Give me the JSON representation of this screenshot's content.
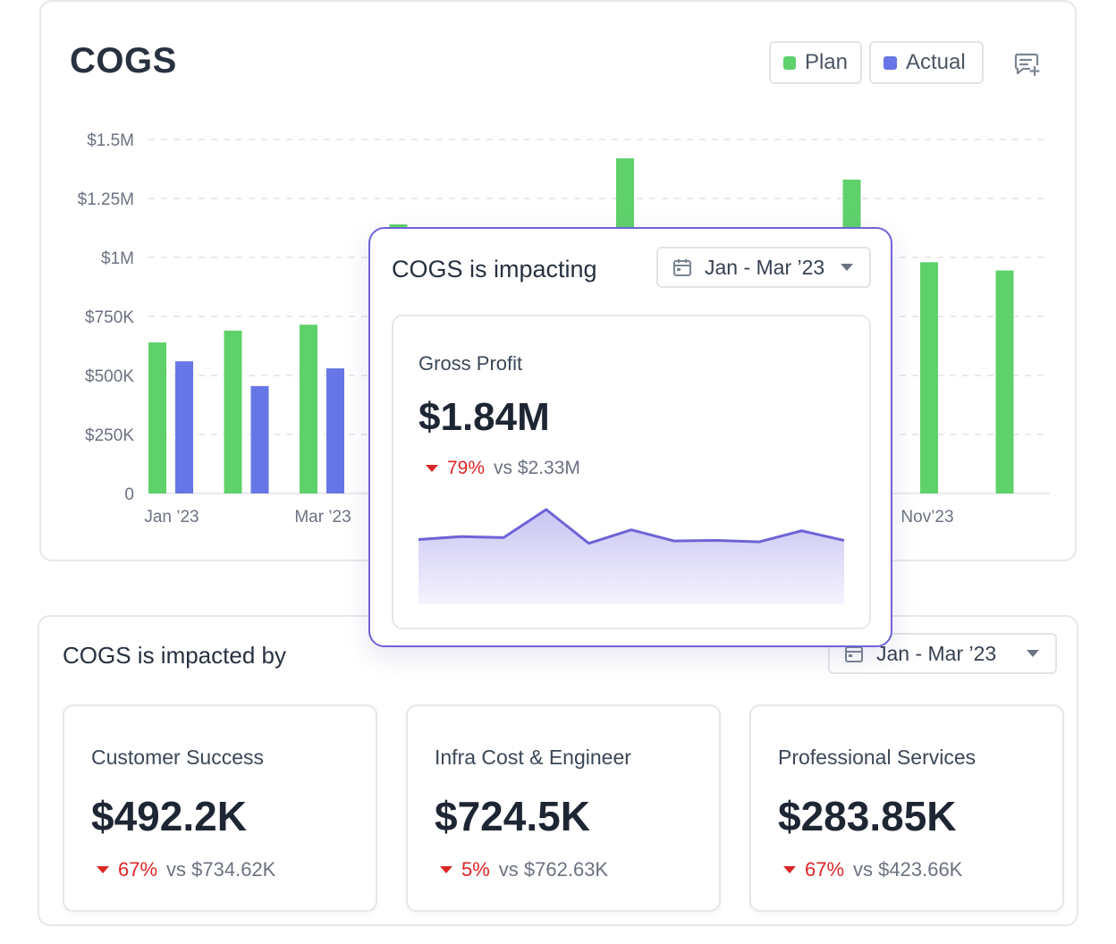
{
  "cogs_card": {
    "title": "COGS",
    "legend": {
      "plan_label": "Plan",
      "actual_label": "Actual"
    },
    "icons": {
      "comment": "comment-add-icon"
    }
  },
  "colors": {
    "plan": "#5fd16b",
    "actual": "#6776e6",
    "accent": "#6e63d6",
    "negative": "#dc2626"
  },
  "chart_data": {
    "type": "bar",
    "title": "COGS",
    "y_ticks": [
      "$1.5M",
      "$1.25M",
      "$1M",
      "$750K",
      "$500K",
      "$250K",
      "0"
    ],
    "ylim": [
      0,
      1500000
    ],
    "x_tick_labels": [
      {
        "index": 0,
        "label": "Jan ’23"
      },
      {
        "index": 2,
        "label": "Mar ’23"
      },
      {
        "index": 10,
        "label": "Nov’23"
      }
    ],
    "series": [
      {
        "name": "Plan",
        "values": [
          640000,
          690000,
          715000,
          1140000,
          null,
          null,
          1420000,
          null,
          null,
          1330000,
          980000,
          945000
        ]
      },
      {
        "name": "Actual",
        "values": [
          560000,
          455000,
          530000,
          null,
          null,
          null,
          null,
          null,
          null,
          null,
          null,
          null
        ]
      }
    ]
  },
  "popup": {
    "title": "COGS is impacting",
    "date_range": "Jan - Mar ’23",
    "gross_profit": {
      "label": "Gross Profit",
      "value": "$1.84M",
      "change_pct": "79%",
      "compare": "vs $2.33M",
      "sparkline": [
        38,
        44,
        42,
        100,
        30,
        58,
        35,
        36,
        33,
        56,
        36
      ]
    }
  },
  "impacted_by": {
    "title": "COGS is impacted by",
    "date_range": "Jan - Mar ’23",
    "cards": [
      {
        "label": "Customer Success",
        "value": "$492.2K",
        "change_pct": "67%",
        "compare": "vs $734.62K"
      },
      {
        "label": "Infra Cost & Engineer",
        "value": "$724.5K",
        "change_pct": "5%",
        "compare": "vs $762.63K"
      },
      {
        "label": "Professional Services",
        "value": "$283.85K",
        "change_pct": "67%",
        "compare": "vs $423.66K"
      }
    ]
  }
}
